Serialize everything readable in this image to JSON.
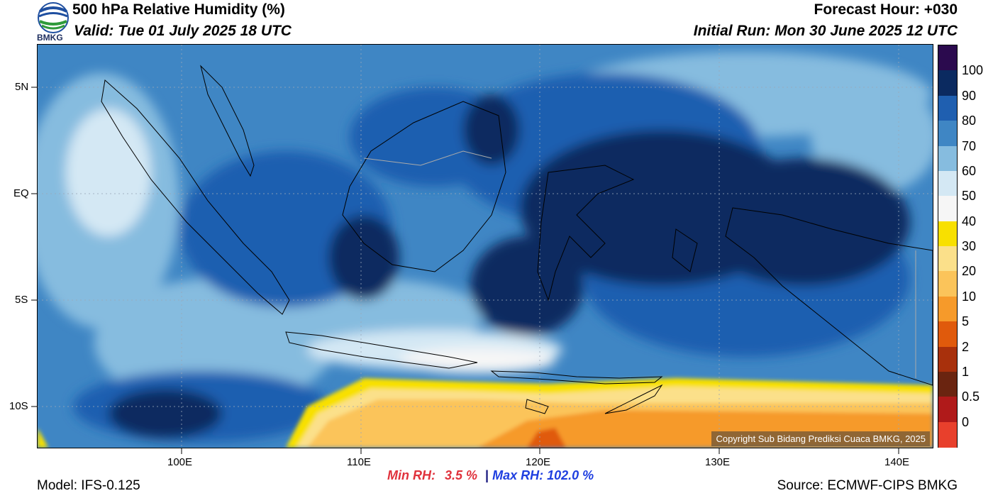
{
  "header": {
    "title": "500 hPa Relative Humidity (%)",
    "valid": "Valid: Tue 01 July 2025 18 UTC",
    "forecast_hour": "Forecast Hour: +030",
    "initial_run": "Initial Run: Mon 30 June 2025 12 UTC",
    "logo_text": "BMKG"
  },
  "map": {
    "lat_labels": [
      "5N",
      "EQ",
      "5S",
      "10S"
    ],
    "lon_labels": [
      "100E",
      "110E",
      "120E",
      "130E",
      "140E"
    ],
    "copyright": "Copyright Sub Bidang Prediksi Cuaca BMKG, 2025"
  },
  "colorbar": {
    "labels": [
      "100",
      "90",
      "80",
      "70",
      "60",
      "50",
      "40",
      "30",
      "20",
      "10",
      "5",
      "2",
      "1",
      "0.5",
      "0"
    ],
    "colors": [
      "#2b0a4e",
      "#0b2a60",
      "#1f5fb0",
      "#3f86c4",
      "#86bcdf",
      "#d4e8f4",
      "#f6f6f6",
      "#f8e000",
      "#fbe08a",
      "#fbc45a",
      "#f69a2a",
      "#e05a0c",
      "#a8300c",
      "#6a2410",
      "#b01a1a",
      "#e8402c"
    ]
  },
  "footer": {
    "model": "Model: IFS-0.125",
    "min_label": "Min RH:",
    "min_value": "3.5 %",
    "separator": "|",
    "max_label": "Max RH:",
    "max_value": "102.0 %",
    "source": "Source: ECMWF-CIPS BMKG"
  }
}
